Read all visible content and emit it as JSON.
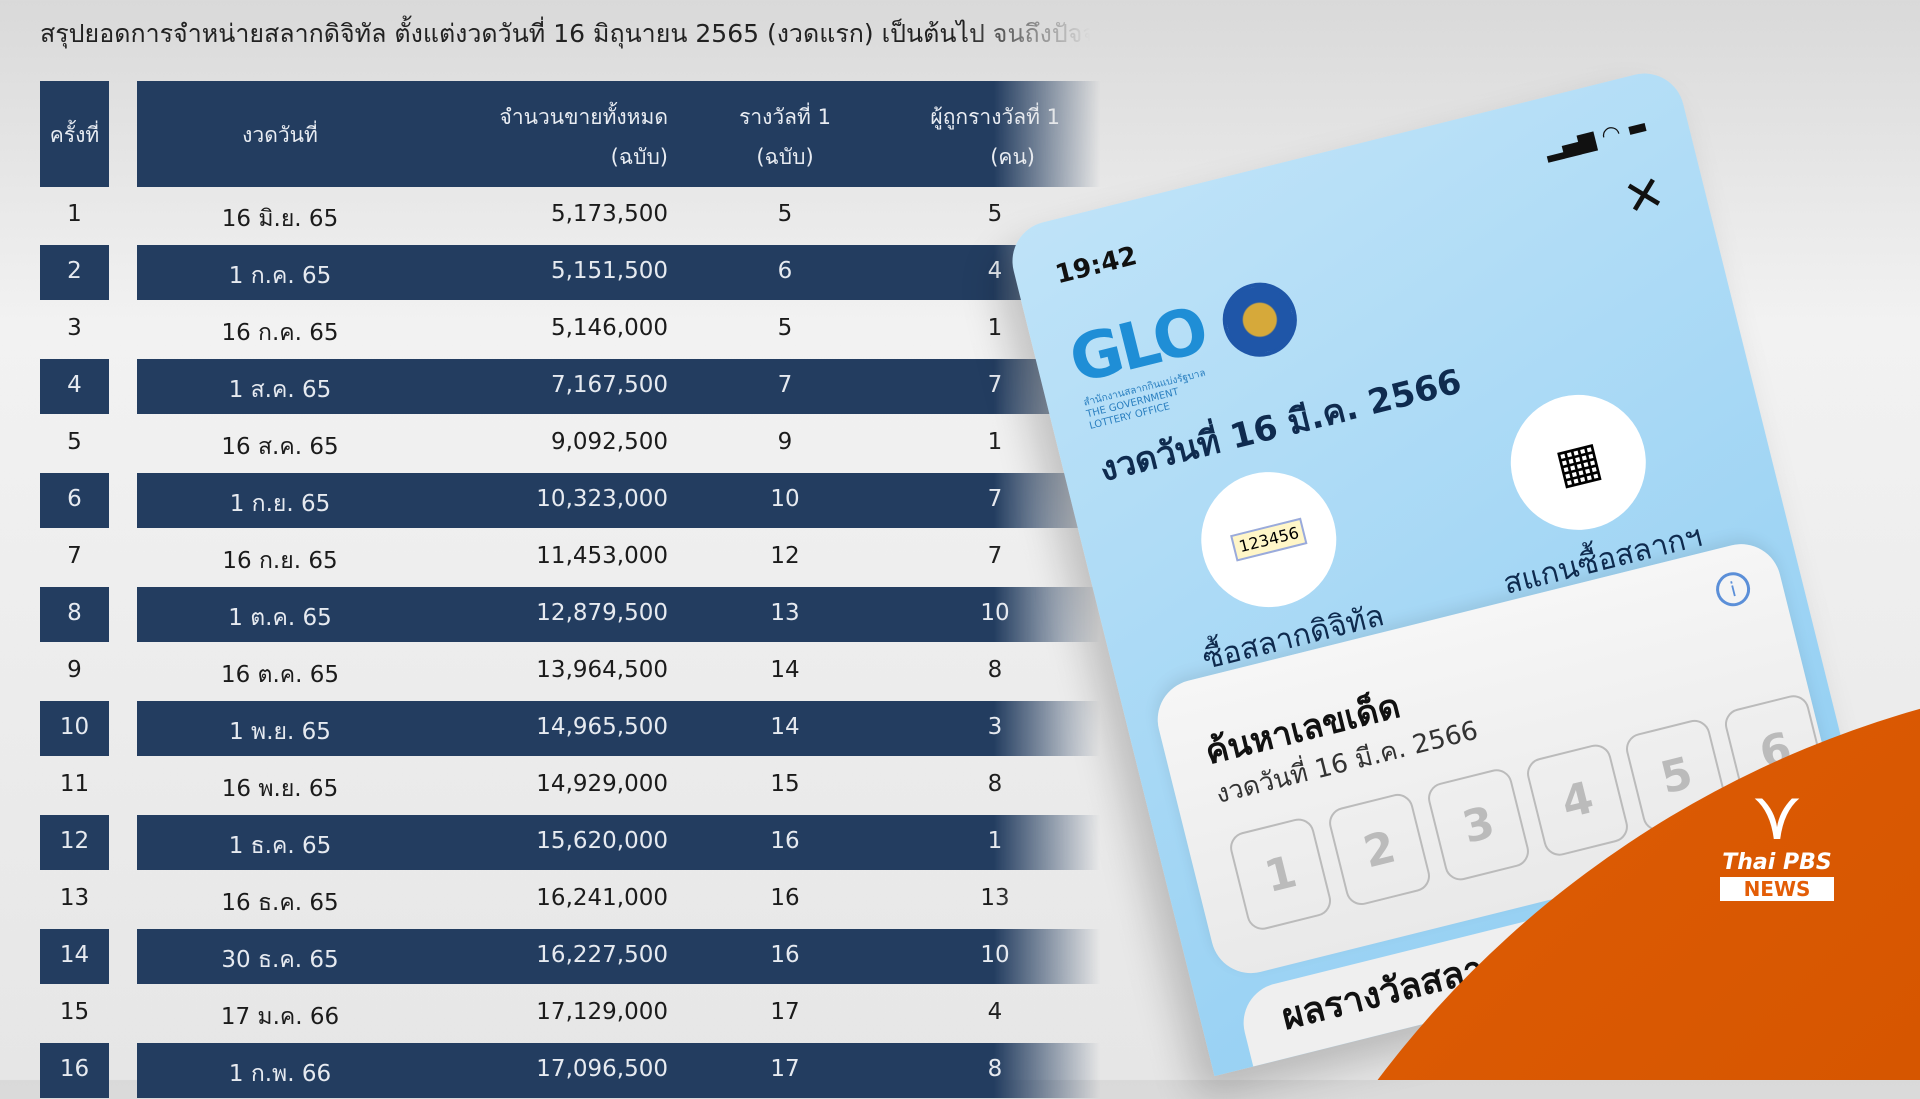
{
  "title": "สรุปยอดการจำหน่ายสลากดิจิทัล ตั้งแต่งวดวันที่ 16 มิถุนายน 2565 (งวดแรก) เป็นต้นไป จนถึงปัจจุบัน",
  "table": {
    "headers": {
      "no": "ครั้งที่",
      "date": "งวดวันที่",
      "total": "จำนวนขายทั้งหมด",
      "total_unit": "(ฉบับ)",
      "prize": "รางวัลที่ 1",
      "prize_unit": "(ฉบับ)",
      "winners": "ผู้ถูกรางวัลที่ 1",
      "winners_unit": "(คน)"
    },
    "rows": [
      [
        "1",
        "16 มิ.ย. 65",
        "5,173,500",
        "5",
        "5"
      ],
      [
        "2",
        "1 ก.ค. 65",
        "5,151,500",
        "6",
        "4"
      ],
      [
        "3",
        "16 ก.ค. 65",
        "5,146,000",
        "5",
        "1"
      ],
      [
        "4",
        "1 ส.ค. 65",
        "7,167,500",
        "7",
        "7"
      ],
      [
        "5",
        "16 ส.ค. 65",
        "9,092,500",
        "9",
        "1"
      ],
      [
        "6",
        "1 ก.ย. 65",
        "10,323,000",
        "10",
        "7"
      ],
      [
        "7",
        "16 ก.ย. 65",
        "11,453,000",
        "12",
        "7"
      ],
      [
        "8",
        "1 ต.ค. 65",
        "12,879,500",
        "13",
        "10"
      ],
      [
        "9",
        "16 ต.ค. 65",
        "13,964,500",
        "14",
        "8"
      ],
      [
        "10",
        "1 พ.ย. 65",
        "14,965,500",
        "14",
        "3"
      ],
      [
        "11",
        "16 พ.ย. 65",
        "14,929,000",
        "15",
        "8"
      ],
      [
        "12",
        "1 ธ.ค. 65",
        "15,620,000",
        "16",
        "1"
      ],
      [
        "13",
        "16 ธ.ค. 65",
        "16,241,000",
        "16",
        "13"
      ],
      [
        "14",
        "30 ธ.ค. 65",
        "16,227,500",
        "16",
        "10"
      ],
      [
        "15",
        "17 ม.ค. 66",
        "17,129,000",
        "17",
        "4"
      ],
      [
        "16",
        "1 ก.พ. 66",
        "17,096,500",
        "17",
        "8"
      ]
    ]
  },
  "phone": {
    "time": "19:42",
    "logo": "GLO",
    "logo_sub": "สำนักงานสลากกินแบ่งรัฐบาล THE GOVERNMENT LOTTERY OFFICE",
    "draw_title": "งวดวันที่ 16 มี.ค. 2566",
    "buy_label": "ซื้อสลากดิจิทัล",
    "ticket_number": "123456",
    "scan_label": "สแกนซื้อสลากฯ",
    "search_title": "ค้นหาเลขเด็ด",
    "search_sub": "งวดวันที่  16 มี.ค. 2566",
    "digits": [
      "1",
      "2",
      "3",
      "4",
      "5",
      "6"
    ],
    "results_title": "ผลรางวัลสลาก"
  },
  "brand": {
    "name": "Thai PBS",
    "news": "NEWS",
    "color": "#e35d07"
  }
}
